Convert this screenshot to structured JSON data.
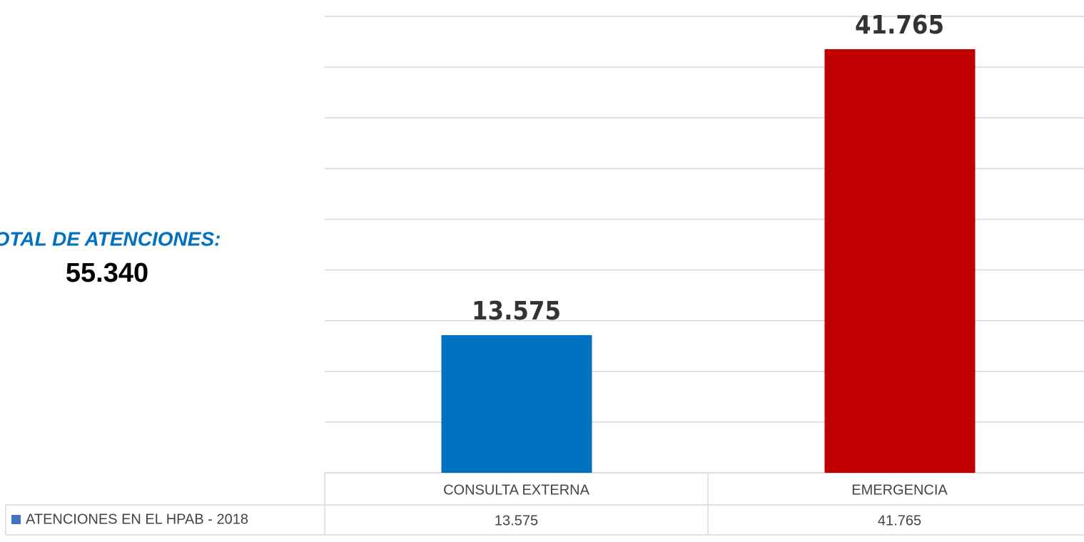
{
  "chart_data": {
    "type": "bar",
    "annotations": [
      {
        "text": "TOTAL DE ATENCIONES:",
        "value": 55340,
        "value_label": "55.340"
      }
    ],
    "categories": [
      "CONSULTA EXTERNA",
      "EMERGENCIA"
    ],
    "series": [
      {
        "name": "ATENCIONES EN EL HPAB - 2018",
        "color": "#4472c4",
        "point_colors": [
          "#0070c0",
          "#c00000"
        ],
        "values": [
          13575,
          41765
        ],
        "value_labels": [
          "13.575",
          "41.765"
        ]
      }
    ],
    "ylim": [
      0,
      45000
    ],
    "yticks": [
      0,
      5000,
      10000,
      15000,
      20000,
      25000,
      30000,
      35000,
      40000,
      45000
    ],
    "grid": true,
    "data_table": true
  }
}
